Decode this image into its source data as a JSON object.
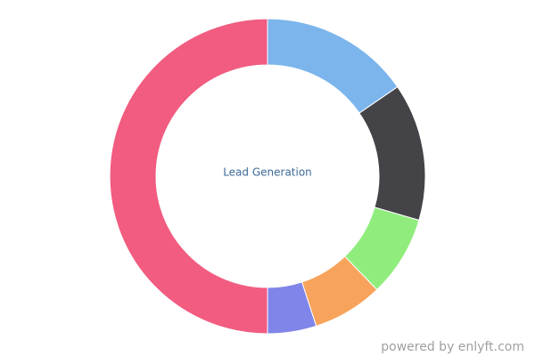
{
  "chart_data": {
    "type": "donut",
    "center_label": "Lead Generation",
    "values": [
      15.4,
      14.1,
      8.3,
      7.2,
      5,
      50
    ],
    "colors": [
      "#7cb5ec",
      "#434348",
      "#90ed7d",
      "#f7a35c",
      "#8085e9",
      "#f15c80"
    ]
  },
  "footer": "powered by enlyft.com"
}
